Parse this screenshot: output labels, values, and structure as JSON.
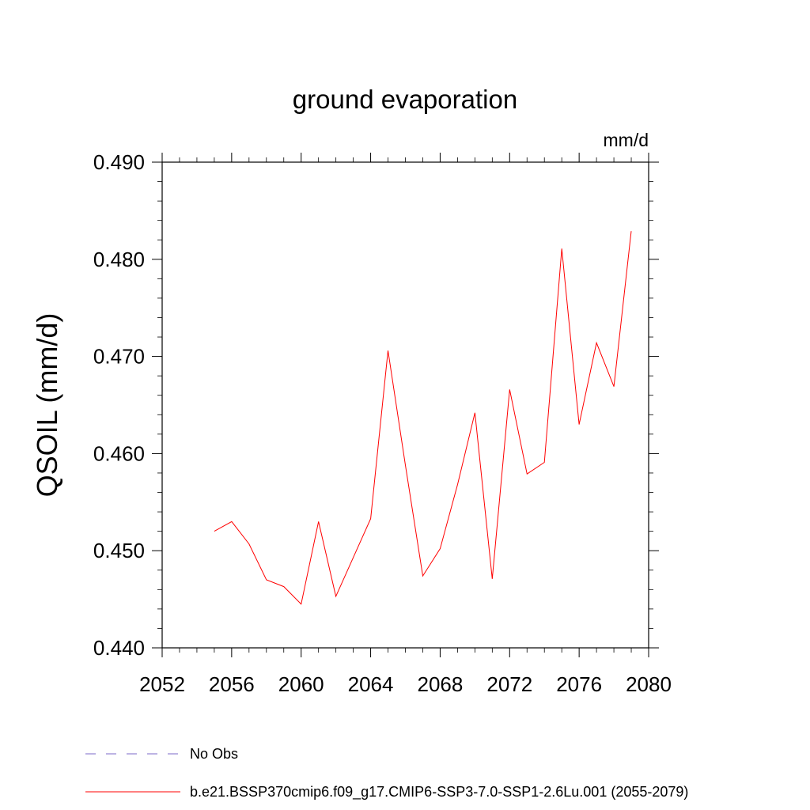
{
  "chart_data": {
    "type": "line",
    "title": "ground evaporation",
    "units_label": "mm/d",
    "xlabel": "",
    "ylabel": "QSOIL  (mm/d)",
    "xlim": [
      2052,
      2080
    ],
    "ylim": [
      0.44,
      0.49
    ],
    "x_ticks": [
      2052,
      2056,
      2060,
      2064,
      2068,
      2072,
      2076,
      2080
    ],
    "y_ticks": [
      "0.440",
      "0.450",
      "0.460",
      "0.470",
      "0.480",
      "0.490"
    ],
    "grid": false,
    "legend_position": "bottom-left",
    "legend": [
      {
        "label": "No Obs",
        "color": "#7b68c8",
        "style": "dashed"
      },
      {
        "label": "b.e21.BSSP370cmip6.f09_g17.CMIP6-SSP3-7.0-SSP1-2.6Lu.001 (2055-2079)",
        "color": "#ff0000",
        "style": "solid"
      }
    ],
    "series": [
      {
        "color": "#ff0000",
        "x": [
          2055,
          2056,
          2057,
          2058,
          2059,
          2060,
          2061,
          2062,
          2063,
          2064,
          2065,
          2066,
          2067,
          2068,
          2069,
          2070,
          2071,
          2072,
          2073,
          2074,
          2075,
          2076,
          2077,
          2078,
          2079
        ],
        "values": [
          0.452,
          0.453,
          0.4507,
          0.447,
          0.4463,
          0.4445,
          0.453,
          0.4453,
          0.4493,
          0.4533,
          0.4706,
          0.4588,
          0.4474,
          0.4502,
          0.4568,
          0.4642,
          0.4471,
          0.4666,
          0.4579,
          0.4591,
          0.4811,
          0.463,
          0.4714,
          0.4669,
          0.4829
        ]
      }
    ]
  }
}
